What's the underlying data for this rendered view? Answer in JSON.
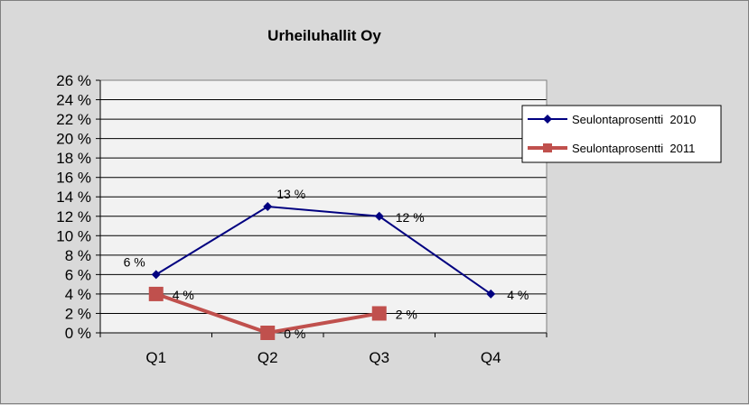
{
  "chart_data": {
    "type": "line",
    "title": "Urheiluhallit Oy",
    "categories": [
      "Q1",
      "Q2",
      "Q3",
      "Q4"
    ],
    "ylim": [
      0,
      26
    ],
    "ytick_step": 2,
    "ytick_suffix": " %",
    "grid": true,
    "legend_position": "right",
    "series": [
      {
        "name": "Seulontaprosentti  2010",
        "values": [
          6,
          13,
          12,
          4
        ],
        "data_labels": [
          "6 %",
          "13 %",
          "12 %",
          "4 %"
        ],
        "color": "#000080",
        "marker": "diamond"
      },
      {
        "name": "Seulontaprosentti  2011",
        "values": [
          4,
          0,
          2,
          null
        ],
        "data_labels": [
          "4 %",
          "0 %",
          "2 %",
          null
        ],
        "color": "#c0504d",
        "marker": "square"
      }
    ]
  },
  "colors": {
    "chart_background": "#d9d9d9",
    "plot_background": "#f2f2f2",
    "gridline": "#000000"
  }
}
